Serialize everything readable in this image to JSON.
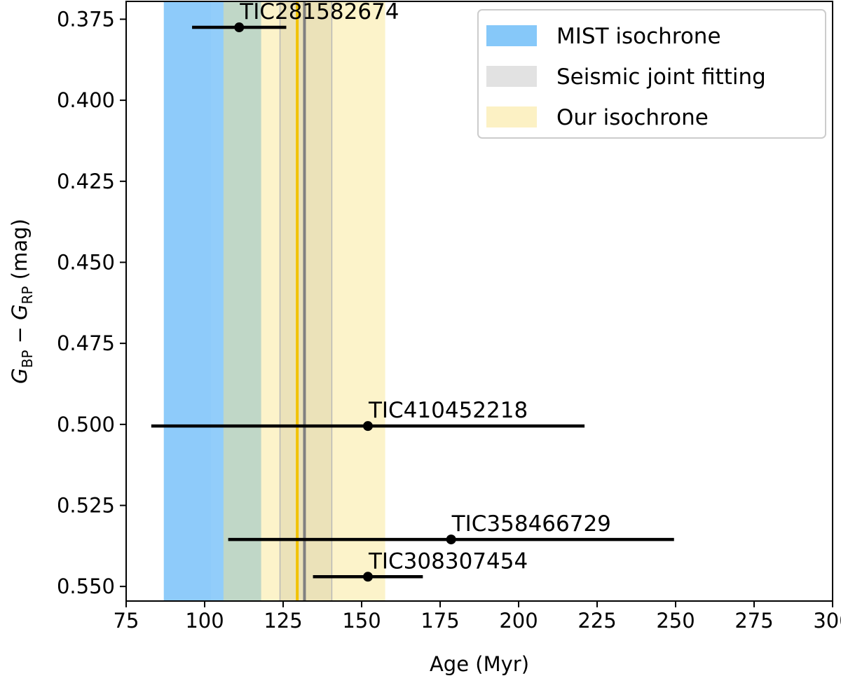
{
  "chart_data": {
    "type": "errorbar",
    "xlabel": "Age (Myr)",
    "ylabel": {
      "G": "G",
      "sub1": "BP",
      "minus": " − ",
      "sub2": "RP",
      "unit": " (mag)"
    },
    "xlim": [
      75,
      300
    ],
    "ylim": [
      0.5545,
      0.3695
    ],
    "y_inverted": true,
    "x_ticks": [
      75,
      100,
      125,
      150,
      175,
      200,
      225,
      250,
      275,
      300
    ],
    "x_tick_labels": [
      "75",
      "100",
      "125",
      "150",
      "175",
      "200",
      "225",
      "250",
      "275",
      "300"
    ],
    "y_ticks": [
      0.375,
      0.4,
      0.425,
      0.45,
      0.475,
      0.5,
      0.525,
      0.55
    ],
    "y_tick_labels": [
      "0.375",
      "0.400",
      "0.425",
      "0.450",
      "0.475",
      "0.500",
      "0.525",
      "0.550"
    ],
    "grid": false,
    "legend_position": "top-right",
    "bands": [
      {
        "name": "MIST isochrone",
        "x_range": [
          87,
          118
        ],
        "color": "#86c8f9",
        "opacity": 0.9
      },
      {
        "name": "Seismic joint fitting",
        "x_range": [
          124,
          140.5
        ],
        "color": "#a8a8a8",
        "opacity": 0.35
      },
      {
        "name": "Our isochrone",
        "x_range": [
          106,
          157.5
        ],
        "color": "#f9e48a",
        "opacity": 0.45
      }
    ],
    "inner_bands": [
      {
        "x_range": [
          87,
          102
        ],
        "color": "#86c8f9",
        "opacity": 0.35
      }
    ],
    "vlines": [
      {
        "x": 129.5,
        "color": "#f2c200",
        "width": 4
      },
      {
        "x": 131.8,
        "color": "#808080",
        "width": 4
      },
      {
        "x": 124.0,
        "color": "#b8b8b8",
        "width": 1.5
      },
      {
        "x": 140.5,
        "color": "#b8b8b8",
        "width": 1.5
      }
    ],
    "stars": [
      {
        "name": "TIC281582674",
        "x": 111,
        "xerr_low": 15,
        "xerr_high": 15,
        "y": 0.3775
      },
      {
        "name": "TIC410452218",
        "x": 152,
        "xerr_low": 69,
        "xerr_high": 69,
        "y": 0.5005
      },
      {
        "name": "TIC358466729",
        "x": 178.5,
        "xerr_low": 71,
        "xerr_high": 71,
        "y": 0.5355
      },
      {
        "name": "TIC308307454",
        "x": 152,
        "xerr_low": 17.5,
        "xerr_high": 17.5,
        "y": 0.547
      }
    ],
    "legend": [
      {
        "label": "MIST isochrone",
        "color": "#86c8f9"
      },
      {
        "label": "Seismic joint fitting",
        "color": "#e2e2e2"
      },
      {
        "label": "Our isochrone",
        "color": "#fcf1c4"
      }
    ]
  }
}
